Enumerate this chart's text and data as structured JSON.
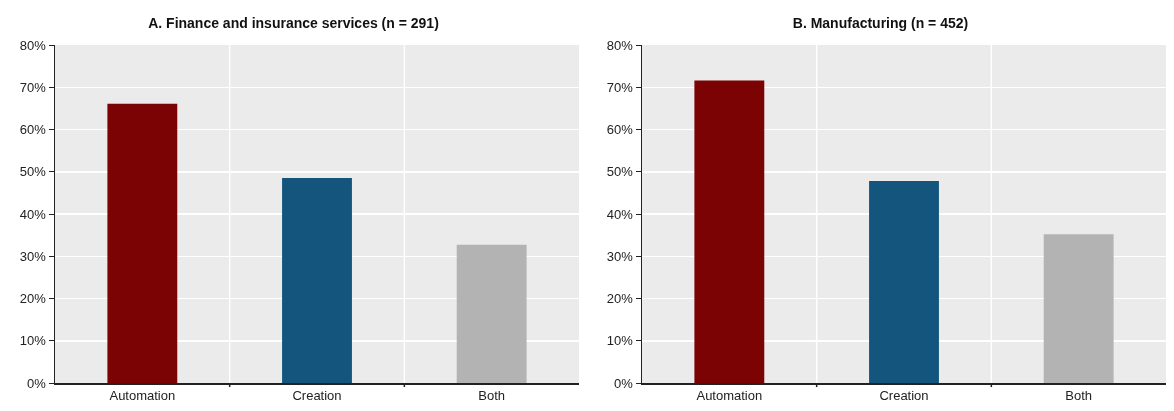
{
  "chart_data": [
    {
      "type": "bar",
      "title": "A. Finance and insurance services (n = 291)",
      "categories": [
        "Automation",
        "Creation",
        "Both"
      ],
      "values": [
        66.1,
        48.5,
        32.7
      ],
      "colors": [
        "#7b0304",
        "#14557e",
        "#b3b3b3"
      ],
      "ylim": [
        0,
        80
      ],
      "yticks": [
        {
          "value": 0,
          "label": "0%"
        },
        {
          "value": 10,
          "label": "10%"
        },
        {
          "value": 20,
          "label": "20%"
        },
        {
          "value": 30,
          "label": "30%"
        },
        {
          "value": 40,
          "label": "40%"
        },
        {
          "value": 50,
          "label": "50%"
        },
        {
          "value": 60,
          "label": "60%"
        },
        {
          "value": 70,
          "label": "70%"
        },
        {
          "value": 80,
          "label": "80%"
        }
      ],
      "grid": true
    },
    {
      "type": "bar",
      "title": "B. Manufacturing (n = 452)",
      "categories": [
        "Automation",
        "Creation",
        "Both"
      ],
      "values": [
        71.6,
        47.8,
        35.2
      ],
      "colors": [
        "#7b0304",
        "#14557e",
        "#b3b3b3"
      ],
      "ylim": [
        0,
        80
      ],
      "yticks": [
        {
          "value": 0,
          "label": "0%"
        },
        {
          "value": 10,
          "label": "10%"
        },
        {
          "value": 20,
          "label": "20%"
        },
        {
          "value": 30,
          "label": "30%"
        },
        {
          "value": 40,
          "label": "40%"
        },
        {
          "value": 50,
          "label": "50%"
        },
        {
          "value": 60,
          "label": "60%"
        },
        {
          "value": 70,
          "label": "70%"
        },
        {
          "value": 80,
          "label": "80%"
        }
      ],
      "grid": true
    }
  ]
}
